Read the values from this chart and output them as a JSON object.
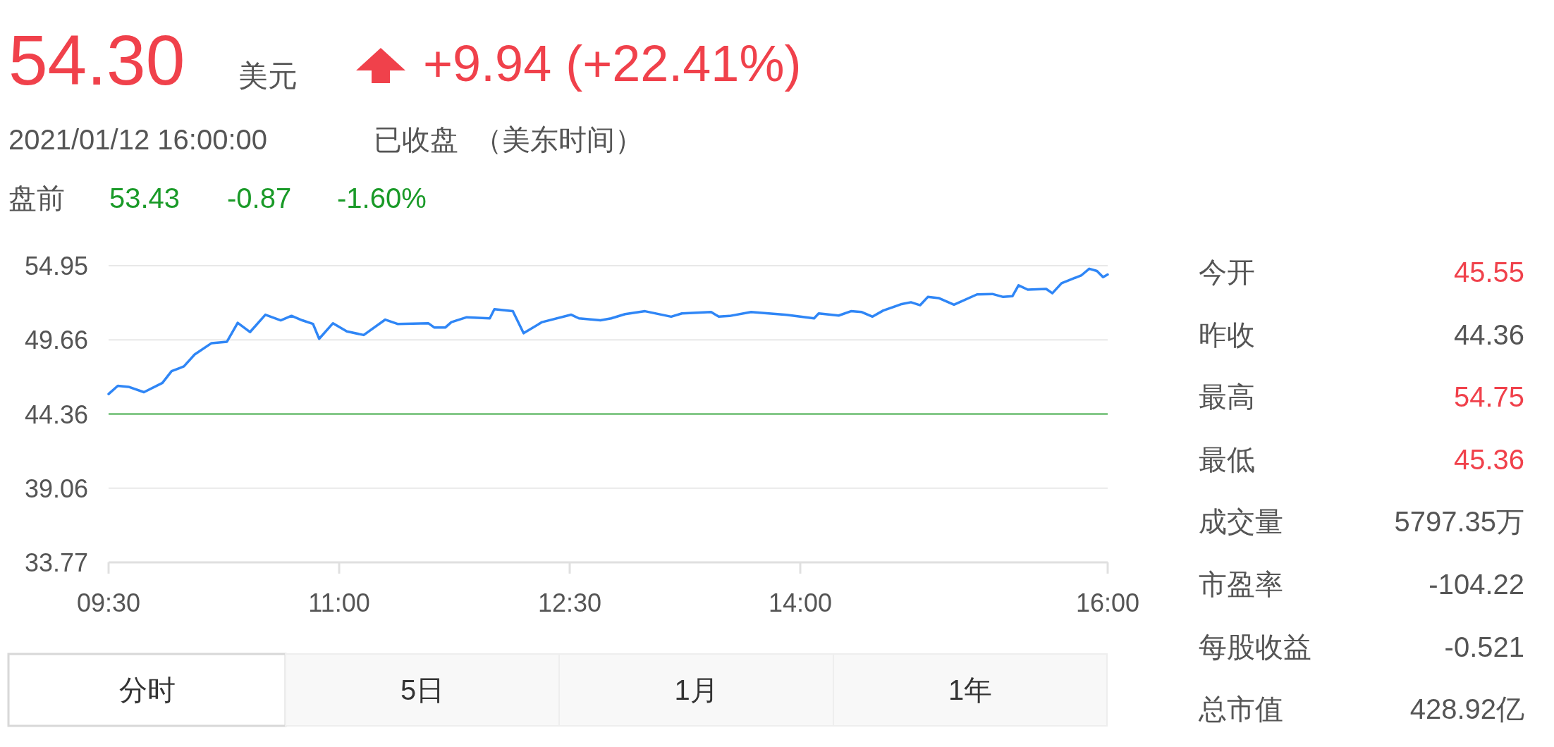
{
  "chart_data": {
    "type": "line",
    "title": "54.30",
    "annotations": [
      "美元",
      "+9.94 (+22.41%)",
      "2021/01/12 16:00:00",
      "已收盘",
      "（美东时间）",
      "盘前",
      "53.43",
      "-0.87",
      "-1.60%",
      "今开",
      "45.55",
      "昨收",
      "44.36",
      "最高",
      "54.75",
      "最低",
      "45.36",
      "成交量",
      "5797.35万",
      "市盈率",
      "-104.22",
      "每股收益",
      "-0.521",
      "总市值",
      "428.92亿",
      "分时",
      "5日",
      "1月",
      "1年"
    ],
    "series": [
      {
        "color": "#2f86f6",
        "x": [
          9.5,
          9.56,
          9.63,
          9.73,
          9.85,
          9.91,
          9.99,
          10.06,
          10.17,
          10.27,
          10.34,
          10.42,
          10.52,
          10.62,
          10.69,
          10.76,
          10.83,
          10.87,
          10.96,
          11.05,
          11.16,
          11.3,
          11.38,
          11.58,
          11.62,
          11.69,
          11.73,
          11.83,
          11.98,
          12.01,
          12.13,
          12.2,
          12.32,
          12.51,
          12.56,
          12.7,
          12.77,
          12.86,
          12.99,
          13.16,
          13.23,
          13.42,
          13.47,
          13.54,
          13.68,
          13.91,
          14.09,
          14.12,
          14.25,
          14.33,
          14.4,
          14.47,
          14.54,
          14.66,
          14.72,
          14.78,
          14.83,
          14.9,
          15.0,
          15.15,
          15.25,
          15.32,
          15.38,
          15.42,
          15.48,
          15.6,
          15.64,
          15.7,
          15.76,
          15.83,
          15.88,
          15.93,
          15.97,
          16.0
        ],
        "values": [
          45.79,
          46.37,
          46.3,
          45.92,
          46.58,
          47.42,
          47.76,
          48.61,
          49.42,
          49.52,
          50.87,
          50.21,
          51.45,
          51.05,
          51.37,
          51.05,
          50.79,
          49.73,
          50.84,
          50.26,
          50.0,
          51.1,
          50.79,
          50.84,
          50.53,
          50.53,
          50.92,
          51.27,
          51.19,
          51.84,
          51.71,
          50.13,
          50.92,
          51.45,
          51.19,
          51.05,
          51.19,
          51.49,
          51.7,
          51.31,
          51.54,
          51.64,
          51.31,
          51.36,
          51.64,
          51.44,
          51.19,
          51.54,
          51.39,
          51.7,
          51.64,
          51.31,
          51.75,
          52.21,
          52.34,
          52.13,
          52.72,
          52.64,
          52.16,
          52.9,
          52.93,
          52.72,
          52.77,
          53.55,
          53.24,
          53.29,
          52.98,
          53.7,
          53.96,
          54.27,
          54.73,
          54.57,
          54.13,
          54.32
        ]
      }
    ],
    "xlim": [
      9.5,
      16
    ],
    "xticks": [
      {
        "value": 9.5,
        "label": "09:30"
      },
      {
        "value": 11,
        "label": "11:00"
      },
      {
        "value": 12.5,
        "label": "12:30"
      },
      {
        "value": 14,
        "label": "14:00"
      },
      {
        "value": 16,
        "label": "16:00"
      }
    ],
    "ylim": [
      33.77,
      54.95
    ],
    "yticks": [
      54.95,
      49.66,
      44.36,
      39.06,
      33.77
    ],
    "grid": "y",
    "ref_lines": [
      {
        "axis": "y",
        "value": 44.36,
        "color": "#86c98a"
      }
    ]
  }
}
